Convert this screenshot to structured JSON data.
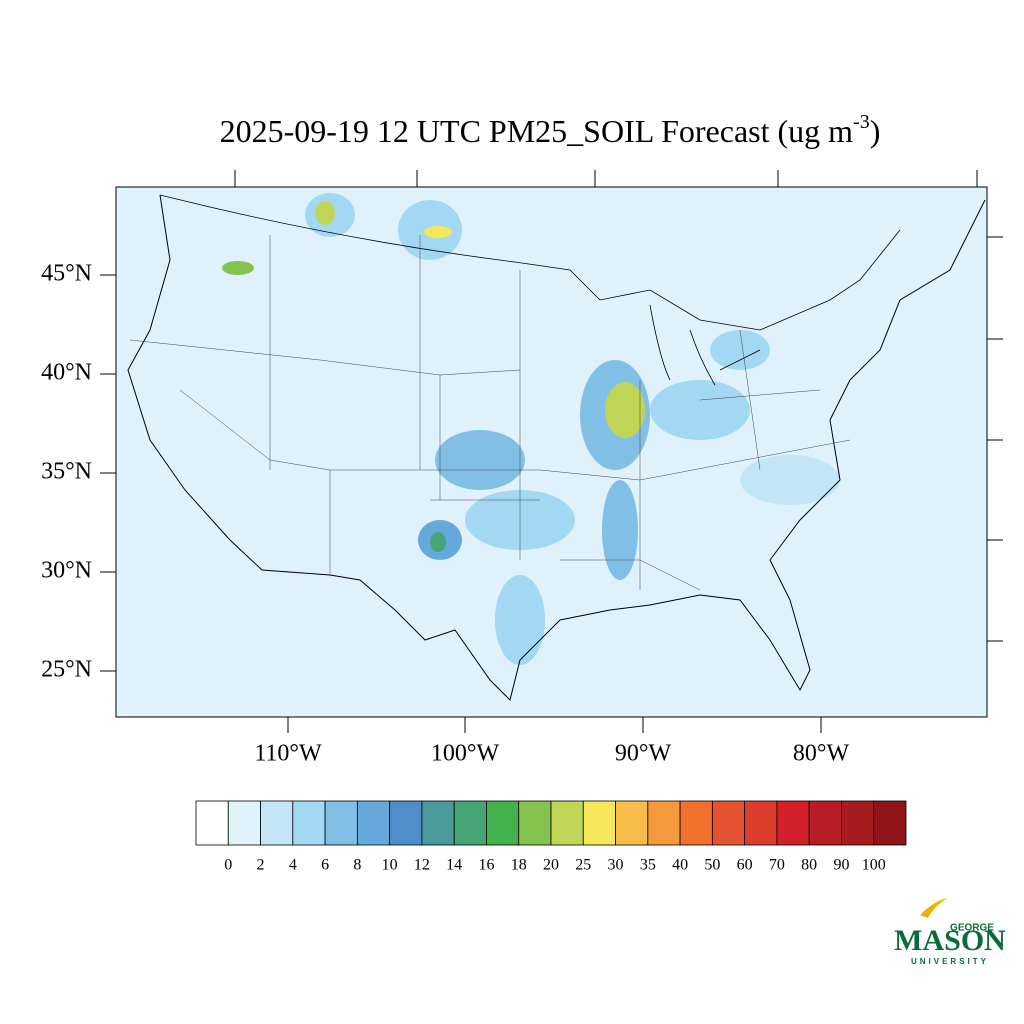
{
  "title": [
    "2025-09-19 12 UTC PM25_SOIL Forecast (ug m",
    "-3",
    ")"
  ],
  "lat_labels": [
    "45°N",
    "40°N",
    "35°N",
    "30°N",
    "25°N"
  ],
  "lon_labels": [
    "110°W",
    "100°W",
    "90°W",
    "80°W"
  ],
  "colorbar": {
    "levels": [
      0,
      2,
      4,
      6,
      8,
      10,
      12,
      14,
      16,
      18,
      20,
      25,
      30,
      35,
      40,
      50,
      60,
      70,
      80,
      90,
      100
    ],
    "colors": [
      "#ffffff",
      "#e0f3fb",
      "#c2e6f8",
      "#a3d8f3",
      "#82bfe6",
      "#66a8db",
      "#4d8ec9",
      "#4a9a9c",
      "#46a575",
      "#44b24c",
      "#84c44e",
      "#c0d556",
      "#f5e65a",
      "#f6bd4b",
      "#f49a3c",
      "#f0702c",
      "#e65331",
      "#dc3c2c",
      "#d21f2a",
      "#b81c24",
      "#a61b20",
      "#8f1519"
    ]
  },
  "logo": {
    "top": "GEORGE",
    "main": "MASON",
    "bottom": "UNIVERSITY"
  }
}
